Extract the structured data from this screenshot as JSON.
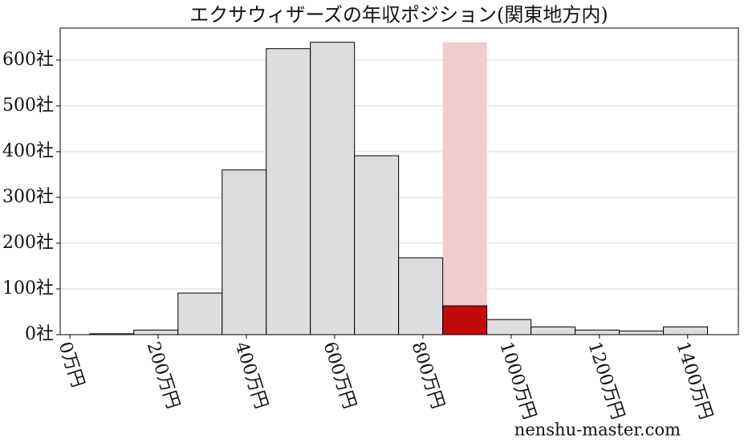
{
  "chart_data": {
    "type": "histogram",
    "title": "エクサウィザーズの年収ポジション(関東地方内)",
    "watermark": "nenshu-master.com",
    "bins": [
      45,
      145,
      245,
      345,
      445,
      545,
      645,
      745,
      845,
      945,
      1045,
      1145,
      1245,
      1345,
      1445
    ],
    "values": [
      2,
      10,
      91,
      360,
      625,
      639,
      391,
      168,
      63,
      33,
      17,
      10,
      8,
      17
    ],
    "color": "#dcdddf",
    "highlight_index": 8,
    "highlight_color": "#c20a0a",
    "band_color": "#f0cccc",
    "xlim": [
      -22,
      1515
    ],
    "ylim": [
      0,
      670
    ],
    "xticks": [
      {
        "value": 0,
        "label": "0万円"
      },
      {
        "value": 200,
        "label": "200万円"
      },
      {
        "value": 400,
        "label": "400万円"
      },
      {
        "value": 600,
        "label": "600万円"
      },
      {
        "value": 800,
        "label": "800万円"
      },
      {
        "value": 1000,
        "label": "1000万円"
      },
      {
        "value": 1200,
        "label": "1200万円"
      },
      {
        "value": 1400,
        "label": "1400万円"
      }
    ],
    "yticks": [
      {
        "value": 0,
        "label": "0社"
      },
      {
        "value": 100,
        "label": "100社"
      },
      {
        "value": 200,
        "label": "200社"
      },
      {
        "value": 300,
        "label": "300社"
      },
      {
        "value": 400,
        "label": "400社"
      },
      {
        "value": 500,
        "label": "500社"
      },
      {
        "value": 600,
        "label": "600社"
      }
    ],
    "grid": true
  }
}
